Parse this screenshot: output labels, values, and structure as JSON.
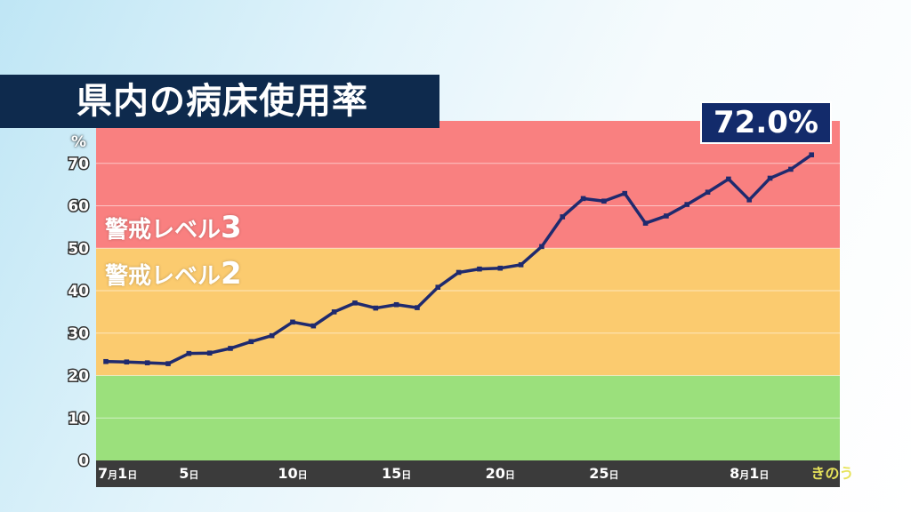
{
  "title": "県内の病床使用率",
  "callout": "72.0%",
  "zones": {
    "level3": {
      "prefix": "警戒レベル",
      "num": "3"
    },
    "level2": {
      "prefix": "警戒レベル",
      "num": "2"
    }
  },
  "colors": {
    "red_zone": "#f98080",
    "orange_zone": "#fbcb6f",
    "green_zone": "#9be07c",
    "line": "#1f2a6e",
    "axis_bar": "#3b3b3b",
    "today_label": "#e7e35a",
    "title_bg": "#0e2a4d",
    "callout_bg": "#132b6b"
  },
  "chart_data": {
    "type": "line",
    "ylabel": "%",
    "ylim": [
      0,
      80
    ],
    "yticks": [
      0,
      10,
      20,
      30,
      40,
      50,
      60,
      70
    ],
    "bands": [
      {
        "from": 0,
        "to": 20,
        "color": "green"
      },
      {
        "from": 20,
        "to": 50,
        "color": "orange"
      },
      {
        "from": 50,
        "to": 80,
        "color": "red"
      }
    ],
    "x_labels": [
      {
        "index": 0,
        "month": "7",
        "day": "1",
        "day_suffix": "日",
        "month_suffix": "月"
      },
      {
        "index": 4,
        "month": "",
        "day": "5",
        "day_suffix": "日",
        "month_suffix": ""
      },
      {
        "index": 9,
        "month": "",
        "day": "10",
        "day_suffix": "日",
        "month_suffix": ""
      },
      {
        "index": 14,
        "month": "",
        "day": "15",
        "day_suffix": "日",
        "month_suffix": ""
      },
      {
        "index": 19,
        "month": "",
        "day": "20",
        "day_suffix": "日",
        "month_suffix": ""
      },
      {
        "index": 24,
        "month": "",
        "day": "25",
        "day_suffix": "日",
        "month_suffix": ""
      },
      {
        "index": 31,
        "month": "8",
        "day": "1",
        "day_suffix": "日",
        "month_suffix": "月"
      },
      {
        "index": 35,
        "text": "きのう",
        "highlight": true
      }
    ],
    "series": [
      {
        "values": [
          23.3,
          23.2,
          23.0,
          22.8,
          25.2,
          25.3,
          26.4,
          28.0,
          29.4,
          32.6,
          31.7,
          35.0,
          37.1,
          35.9,
          36.7,
          36.0,
          40.8,
          44.3,
          45.1,
          45.3,
          46.1,
          50.4,
          57.4,
          61.7,
          61.1,
          62.9,
          55.9,
          57.6,
          60.3,
          63.2,
          66.3,
          61.4,
          66.5,
          68.6,
          72.0
        ]
      }
    ]
  }
}
